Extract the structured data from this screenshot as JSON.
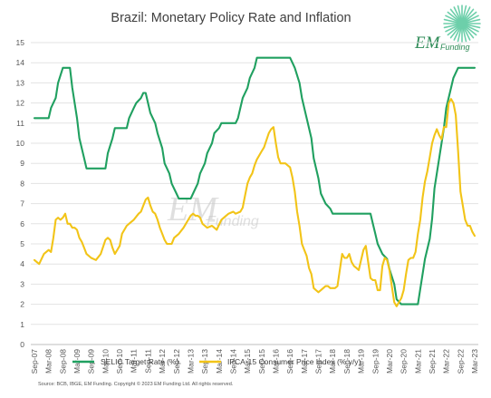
{
  "chart_data": {
    "type": "line",
    "title": "Brazil:  Monetary Policy Rate and Inflation",
    "ylim": [
      0,
      15
    ],
    "yticks": [
      0,
      1,
      2,
      3,
      4,
      5,
      6,
      7,
      8,
      9,
      10,
      11,
      12,
      13,
      14,
      15
    ],
    "xlim": [
      "2007-09",
      "2023-03"
    ],
    "xtick_labels": [
      "Sep-07",
      "Mar-08",
      "Sep-08",
      "Mar-09",
      "Sep-09",
      "Mar-10",
      "Sep-10",
      "Mar-11",
      "Sep-11",
      "Mar-12",
      "Sep-12",
      "Mar-13",
      "Sep-13",
      "Mar-14",
      "Sep-14",
      "Mar-15",
      "Sep-15",
      "Mar-16",
      "Sep-16",
      "Mar-17",
      "Sep-17",
      "Mar-18",
      "Sep-18",
      "Mar-19",
      "Sep-19",
      "Mar-20",
      "Sep-20",
      "Mar-21",
      "Sep-21",
      "Mar-22",
      "Sep-22",
      "Mar-23"
    ],
    "grid": "horizontal",
    "legend_position": "bottom",
    "source": "Source: BCB, IBGE, EM Funding. Copyright © 2023 EM Funding Ltd. All rights reserved.",
    "series": [
      {
        "name": "SELIC Target Rate (%)",
        "color": "#20a060",
        "points": [
          [
            "2007-09",
            11.25
          ],
          [
            "2008-03",
            11.25
          ],
          [
            "2008-04",
            11.75
          ],
          [
            "2008-06",
            12.25
          ],
          [
            "2008-07",
            13.0
          ],
          [
            "2008-09",
            13.75
          ],
          [
            "2008-12",
            13.75
          ],
          [
            "2009-01",
            12.75
          ],
          [
            "2009-03",
            11.25
          ],
          [
            "2009-04",
            10.25
          ],
          [
            "2009-06",
            9.25
          ],
          [
            "2009-07",
            8.75
          ],
          [
            "2010-03",
            8.75
          ],
          [
            "2010-04",
            9.5
          ],
          [
            "2010-06",
            10.25
          ],
          [
            "2010-07",
            10.75
          ],
          [
            "2010-12",
            10.75
          ],
          [
            "2011-01",
            11.25
          ],
          [
            "2011-03",
            11.75
          ],
          [
            "2011-04",
            12.0
          ],
          [
            "2011-06",
            12.25
          ],
          [
            "2011-07",
            12.5
          ],
          [
            "2011-08",
            12.5
          ],
          [
            "2011-09",
            12.0
          ],
          [
            "2011-10",
            11.5
          ],
          [
            "2011-12",
            11.0
          ],
          [
            "2012-01",
            10.5
          ],
          [
            "2012-03",
            9.75
          ],
          [
            "2012-04",
            9.0
          ],
          [
            "2012-06",
            8.5
          ],
          [
            "2012-07",
            8.0
          ],
          [
            "2012-09",
            7.5
          ],
          [
            "2012-10",
            7.25
          ],
          [
            "2013-03",
            7.25
          ],
          [
            "2013-04",
            7.5
          ],
          [
            "2013-06",
            8.0
          ],
          [
            "2013-07",
            8.5
          ],
          [
            "2013-09",
            9.0
          ],
          [
            "2013-10",
            9.5
          ],
          [
            "2013-12",
            10.0
          ],
          [
            "2014-01",
            10.5
          ],
          [
            "2014-03",
            10.75
          ],
          [
            "2014-04",
            11.0
          ],
          [
            "2014-10",
            11.0
          ],
          [
            "2014-11",
            11.25
          ],
          [
            "2014-12",
            11.75
          ],
          [
            "2015-01",
            12.25
          ],
          [
            "2015-03",
            12.75
          ],
          [
            "2015-04",
            13.25
          ],
          [
            "2015-06",
            13.75
          ],
          [
            "2015-07",
            14.25
          ],
          [
            "2016-09",
            14.25
          ],
          [
            "2016-10",
            14.0
          ],
          [
            "2016-11",
            13.75
          ],
          [
            "2017-01",
            13.0
          ],
          [
            "2017-02",
            12.25
          ],
          [
            "2017-04",
            11.25
          ],
          [
            "2017-06",
            10.25
          ],
          [
            "2017-07",
            9.25
          ],
          [
            "2017-09",
            8.25
          ],
          [
            "2017-10",
            7.5
          ],
          [
            "2017-12",
            7.0
          ],
          [
            "2018-02",
            6.75
          ],
          [
            "2018-03",
            6.5
          ],
          [
            "2019-07",
            6.5
          ],
          [
            "2019-08",
            6.0
          ],
          [
            "2019-09",
            5.5
          ],
          [
            "2019-10",
            5.0
          ],
          [
            "2019-12",
            4.5
          ],
          [
            "2020-02",
            4.25
          ],
          [
            "2020-03",
            3.75
          ],
          [
            "2020-05",
            3.0
          ],
          [
            "2020-06",
            2.25
          ],
          [
            "2020-08",
            2.0
          ],
          [
            "2021-03",
            2.0
          ],
          [
            "2021-04",
            2.75
          ],
          [
            "2021-05",
            3.5
          ],
          [
            "2021-06",
            4.25
          ],
          [
            "2021-08",
            5.25
          ],
          [
            "2021-09",
            6.25
          ],
          [
            "2021-10",
            7.75
          ],
          [
            "2021-12",
            9.25
          ],
          [
            "2022-02",
            10.75
          ],
          [
            "2022-03",
            11.75
          ],
          [
            "2022-05",
            12.75
          ],
          [
            "2022-06",
            13.25
          ],
          [
            "2022-08",
            13.75
          ],
          [
            "2023-03",
            13.75
          ]
        ]
      },
      {
        "name": "IPCA-15 Consumer Price Index (% y/y)",
        "color": "#f2c418",
        "points": [
          [
            "2007-09",
            4.2
          ],
          [
            "2007-11",
            4.0
          ],
          [
            "2008-01",
            4.5
          ],
          [
            "2008-03",
            4.7
          ],
          [
            "2008-04",
            4.6
          ],
          [
            "2008-05",
            5.3
          ],
          [
            "2008-06",
            6.2
          ],
          [
            "2008-07",
            6.3
          ],
          [
            "2008-08",
            6.2
          ],
          [
            "2008-09",
            6.3
          ],
          [
            "2008-10",
            6.5
          ],
          [
            "2008-11",
            6.0
          ],
          [
            "2008-12",
            6.0
          ],
          [
            "2009-01",
            5.8
          ],
          [
            "2009-02",
            5.8
          ],
          [
            "2009-03",
            5.7
          ],
          [
            "2009-04",
            5.3
          ],
          [
            "2009-05",
            5.1
          ],
          [
            "2009-06",
            4.8
          ],
          [
            "2009-07",
            4.5
          ],
          [
            "2009-09",
            4.3
          ],
          [
            "2009-11",
            4.2
          ],
          [
            "2010-01",
            4.5
          ],
          [
            "2010-03",
            5.2
          ],
          [
            "2010-04",
            5.3
          ],
          [
            "2010-05",
            5.2
          ],
          [
            "2010-06",
            4.8
          ],
          [
            "2010-07",
            4.5
          ],
          [
            "2010-09",
            4.9
          ],
          [
            "2010-10",
            5.5
          ],
          [
            "2010-12",
            5.9
          ],
          [
            "2011-02",
            6.1
          ],
          [
            "2011-03",
            6.2
          ],
          [
            "2011-05",
            6.5
          ],
          [
            "2011-06",
            6.6
          ],
          [
            "2011-07",
            6.9
          ],
          [
            "2011-08",
            7.2
          ],
          [
            "2011-09",
            7.3
          ],
          [
            "2011-10",
            6.9
          ],
          [
            "2011-11",
            6.6
          ],
          [
            "2011-12",
            6.5
          ],
          [
            "2012-01",
            6.2
          ],
          [
            "2012-02",
            5.8
          ],
          [
            "2012-03",
            5.5
          ],
          [
            "2012-04",
            5.2
          ],
          [
            "2012-05",
            5.0
          ],
          [
            "2012-07",
            5.0
          ],
          [
            "2012-08",
            5.3
          ],
          [
            "2012-10",
            5.5
          ],
          [
            "2012-12",
            5.8
          ],
          [
            "2013-02",
            6.2
          ],
          [
            "2013-03",
            6.4
          ],
          [
            "2013-04",
            6.5
          ],
          [
            "2013-05",
            6.4
          ],
          [
            "2013-06",
            6.4
          ],
          [
            "2013-07",
            6.3
          ],
          [
            "2013-08",
            6.0
          ],
          [
            "2013-09",
            5.9
          ],
          [
            "2013-10",
            5.8
          ],
          [
            "2013-12",
            5.9
          ],
          [
            "2014-01",
            5.8
          ],
          [
            "2014-02",
            5.7
          ],
          [
            "2014-04",
            6.2
          ],
          [
            "2014-06",
            6.4
          ],
          [
            "2014-07",
            6.5
          ],
          [
            "2014-09",
            6.6
          ],
          [
            "2014-10",
            6.5
          ],
          [
            "2014-12",
            6.6
          ],
          [
            "2015-01",
            6.8
          ],
          [
            "2015-02",
            7.4
          ],
          [
            "2015-03",
            8.0
          ],
          [
            "2015-04",
            8.3
          ],
          [
            "2015-05",
            8.5
          ],
          [
            "2015-06",
            8.9
          ],
          [
            "2015-07",
            9.2
          ],
          [
            "2015-09",
            9.6
          ],
          [
            "2015-10",
            9.8
          ],
          [
            "2015-12",
            10.5
          ],
          [
            "2016-01",
            10.7
          ],
          [
            "2016-02",
            10.8
          ],
          [
            "2016-03",
            10.0
          ],
          [
            "2016-04",
            9.3
          ],
          [
            "2016-05",
            9.0
          ],
          [
            "2016-07",
            9.0
          ],
          [
            "2016-08",
            8.9
          ],
          [
            "2016-09",
            8.8
          ],
          [
            "2016-10",
            8.3
          ],
          [
            "2016-11",
            7.6
          ],
          [
            "2016-12",
            6.6
          ],
          [
            "2017-01",
            5.9
          ],
          [
            "2017-02",
            5.0
          ],
          [
            "2017-03",
            4.7
          ],
          [
            "2017-04",
            4.4
          ],
          [
            "2017-05",
            3.8
          ],
          [
            "2017-06",
            3.5
          ],
          [
            "2017-07",
            2.8
          ],
          [
            "2017-08",
            2.7
          ],
          [
            "2017-09",
            2.6
          ],
          [
            "2017-10",
            2.7
          ],
          [
            "2017-12",
            2.9
          ],
          [
            "2018-01",
            2.9
          ],
          [
            "2018-02",
            2.8
          ],
          [
            "2018-03",
            2.8
          ],
          [
            "2018-04",
            2.8
          ],
          [
            "2018-05",
            2.9
          ],
          [
            "2018-06",
            3.7
          ],
          [
            "2018-07",
            4.5
          ],
          [
            "2018-08",
            4.3
          ],
          [
            "2018-09",
            4.3
          ],
          [
            "2018-10",
            4.5
          ],
          [
            "2018-11",
            4.1
          ],
          [
            "2018-12",
            3.9
          ],
          [
            "2019-01",
            3.8
          ],
          [
            "2019-02",
            3.7
          ],
          [
            "2019-03",
            4.2
          ],
          [
            "2019-04",
            4.7
          ],
          [
            "2019-05",
            4.9
          ],
          [
            "2019-06",
            4.1
          ],
          [
            "2019-07",
            3.3
          ],
          [
            "2019-08",
            3.2
          ],
          [
            "2019-09",
            3.2
          ],
          [
            "2019-10",
            2.7
          ],
          [
            "2019-11",
            2.7
          ],
          [
            "2019-12",
            3.9
          ],
          [
            "2020-01",
            4.3
          ],
          [
            "2020-02",
            4.2
          ],
          [
            "2020-03",
            3.7
          ],
          [
            "2020-04",
            2.9
          ],
          [
            "2020-05",
            2.1
          ],
          [
            "2020-06",
            1.9
          ],
          [
            "2020-07",
            2.1
          ],
          [
            "2020-08",
            2.3
          ],
          [
            "2020-09",
            2.7
          ],
          [
            "2020-10",
            3.5
          ],
          [
            "2020-11",
            4.2
          ],
          [
            "2020-12",
            4.3
          ],
          [
            "2021-01",
            4.3
          ],
          [
            "2021-02",
            4.6
          ],
          [
            "2021-03",
            5.5
          ],
          [
            "2021-04",
            6.2
          ],
          [
            "2021-05",
            7.3
          ],
          [
            "2021-06",
            8.1
          ],
          [
            "2021-07",
            8.6
          ],
          [
            "2021-08",
            9.3
          ],
          [
            "2021-09",
            10.0
          ],
          [
            "2021-10",
            10.4
          ],
          [
            "2021-11",
            10.7
          ],
          [
            "2021-12",
            10.4
          ],
          [
            "2022-01",
            10.2
          ],
          [
            "2022-02",
            10.8
          ],
          [
            "2022-03",
            10.8
          ],
          [
            "2022-04",
            12.0
          ],
          [
            "2022-05",
            12.2
          ],
          [
            "2022-06",
            12.0
          ],
          [
            "2022-07",
            11.4
          ],
          [
            "2022-08",
            9.6
          ],
          [
            "2022-09",
            7.6
          ],
          [
            "2022-10",
            6.9
          ],
          [
            "2022-11",
            6.2
          ],
          [
            "2022-12",
            5.9
          ],
          [
            "2023-01",
            5.9
          ],
          [
            "2023-02",
            5.6
          ],
          [
            "2023-03",
            5.4
          ]
        ]
      }
    ]
  },
  "logo": {
    "brand": "EM",
    "sub": "Funding"
  },
  "watermark": {
    "brand": "EM",
    "sub": "Funding"
  }
}
